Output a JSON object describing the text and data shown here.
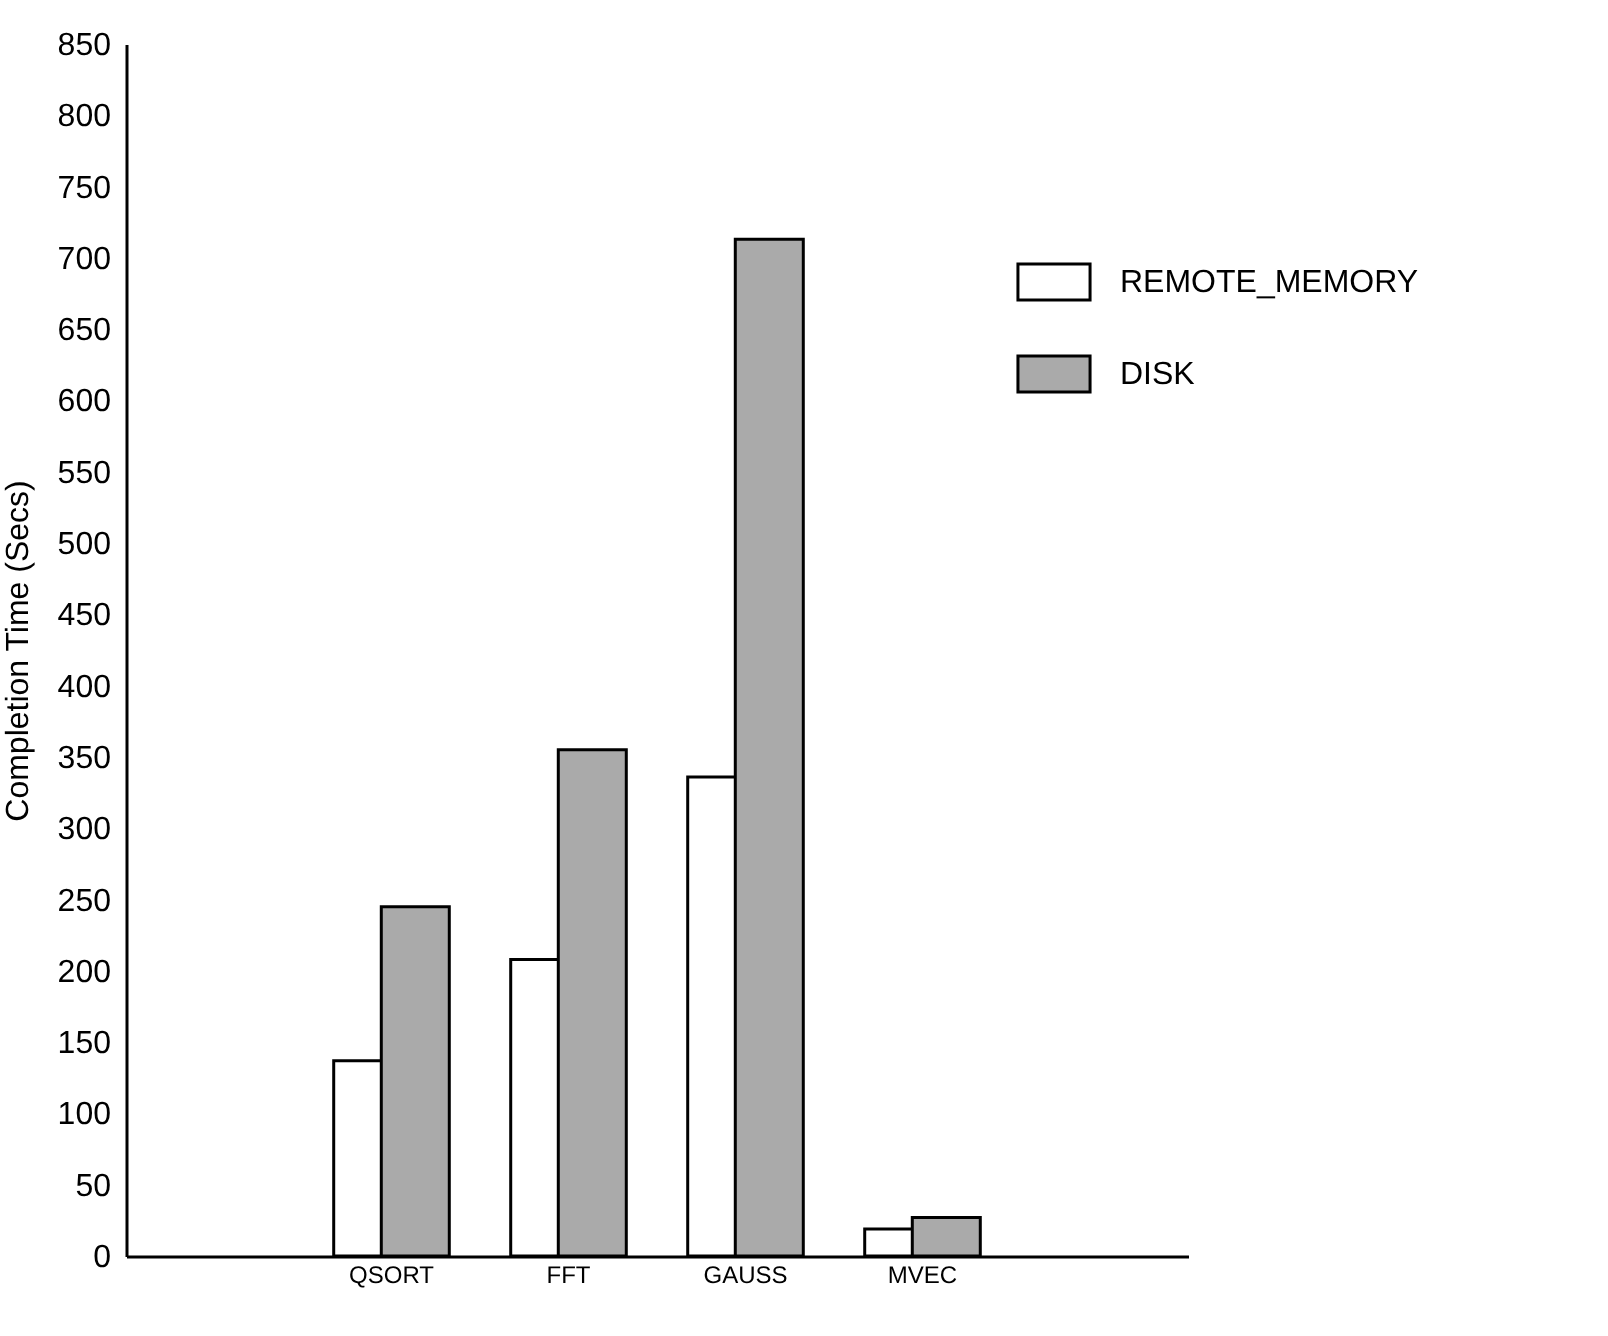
{
  "chart_data": {
    "type": "bar",
    "ylabel": "Completion Time (Secs)",
    "categories": [
      null,
      "QSORT",
      "FFT",
      "GAUSS",
      "MVEC",
      null
    ],
    "series": [
      {
        "name": "REMOTE_MEMORY",
        "color": "#ffffff",
        "values": [
          null,
          137,
          208,
          336,
          19,
          null
        ]
      },
      {
        "name": "DISK",
        "color": "#aaaaaa",
        "values": [
          null,
          245,
          355,
          713,
          27,
          null
        ]
      }
    ],
    "ylim": [
      0,
      850
    ],
    "yticks": [
      0,
      50,
      100,
      150,
      200,
      250,
      300,
      350,
      400,
      450,
      500,
      550,
      600,
      650,
      700,
      750,
      800,
      850
    ],
    "grid": false,
    "legend": "top right"
  }
}
